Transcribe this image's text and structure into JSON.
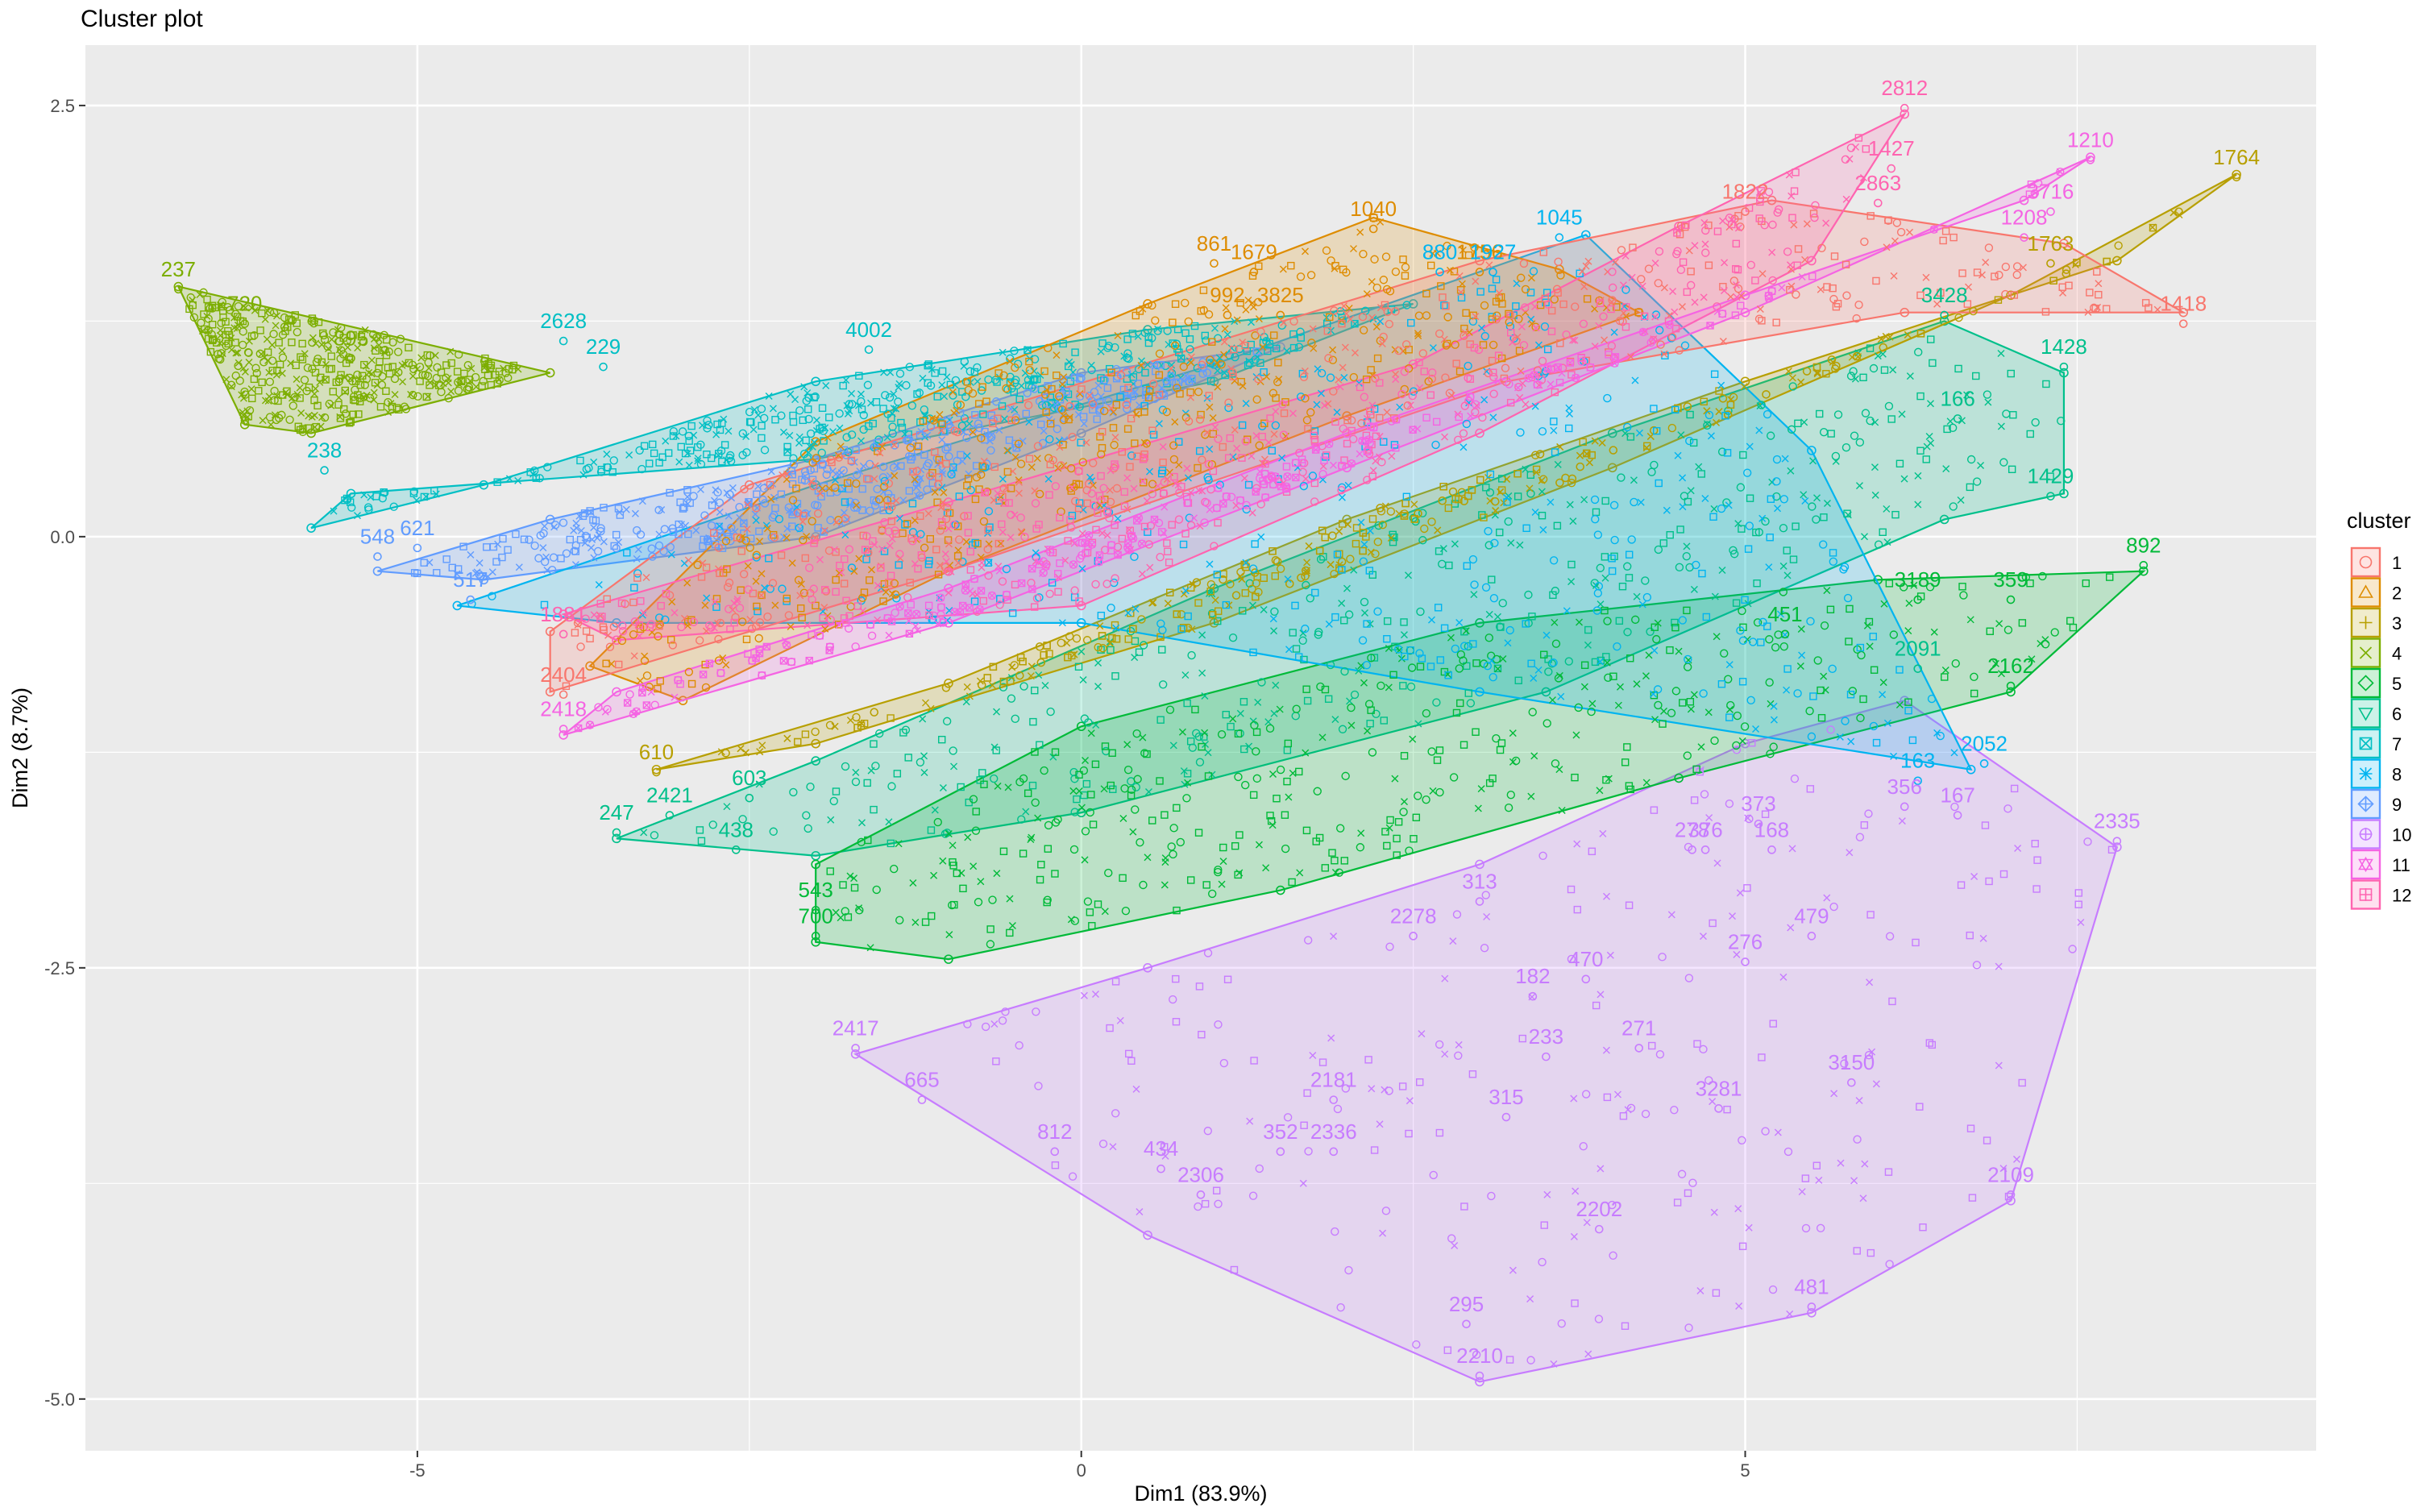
{
  "chart_data": {
    "type": "scatter",
    "title": "Cluster plot",
    "xlabel": "Dim1 (83.9%)",
    "ylabel": "Dim2 (8.7%)",
    "xlim": [
      -7.5,
      9.3
    ],
    "ylim": [
      -5.3,
      2.85
    ],
    "x_ticks": [
      {
        "value": -5,
        "label": "-5"
      },
      {
        "value": 0,
        "label": "0"
      },
      {
        "value": 5,
        "label": "5"
      }
    ],
    "y_ticks": [
      {
        "value": 2.5,
        "label": "2.5"
      },
      {
        "value": 0,
        "label": "0.0"
      },
      {
        "value": -2.5,
        "label": "-2.5"
      },
      {
        "value": -5,
        "label": "-5.0"
      }
    ],
    "grid": true,
    "legend_title": "cluster",
    "legend_placement": "right",
    "series": [
      {
        "name": "1",
        "color": "#F8766D",
        "hull": [
          [
            -4.0,
            -0.9
          ],
          [
            -1.0,
            -0.2
          ],
          [
            3.2,
            0.9
          ],
          [
            6.2,
            1.3
          ],
          [
            8.3,
            1.3
          ],
          [
            7.4,
            1.7
          ],
          [
            5.2,
            1.95
          ],
          [
            3.0,
            1.6
          ],
          [
            -2.5,
            0.3
          ],
          [
            -4.0,
            -0.55
          ]
        ],
        "labels": [
          {
            "x": 8.3,
            "y": 1.3,
            "t": "1418"
          },
          {
            "x": 5.0,
            "y": 1.95,
            "t": "1822"
          },
          {
            "x": -3.9,
            "y": -0.85,
            "t": "2404"
          }
        ]
      },
      {
        "name": "2",
        "color": "#DE8C00",
        "hull": [
          [
            -3.7,
            -0.75
          ],
          [
            -2.0,
            0.55
          ],
          [
            0.5,
            1.35
          ],
          [
            2.2,
            1.85
          ],
          [
            3.6,
            1.55
          ],
          [
            4.2,
            1.3
          ],
          [
            2.0,
            0.7
          ],
          [
            -1.0,
            -0.2
          ],
          [
            -3.0,
            -0.95
          ]
        ],
        "labels": [
          {
            "x": 2.2,
            "y": 1.85,
            "t": "1040"
          },
          {
            "x": 1.0,
            "y": 1.65,
            "t": "861"
          },
          {
            "x": 1.3,
            "y": 1.6,
            "t": "1679"
          },
          {
            "x": 3.0,
            "y": 1.6,
            "t": "1756"
          },
          {
            "x": 1.1,
            "y": 1.35,
            "t": "992"
          },
          {
            "x": 1.5,
            "y": 1.35,
            "t": "3825"
          }
        ]
      },
      {
        "name": "3",
        "color": "#B79F00",
        "hull": [
          [
            -3.2,
            -1.35
          ],
          [
            -1.0,
            -0.85
          ],
          [
            2.0,
            0.1
          ],
          [
            5.0,
            0.9
          ],
          [
            7.8,
            1.6
          ],
          [
            8.7,
            2.1
          ],
          [
            7.0,
            1.4
          ],
          [
            4.0,
            0.4
          ],
          [
            1.0,
            -0.5
          ],
          [
            -2.0,
            -1.2
          ]
        ],
        "labels": [
          {
            "x": 8.7,
            "y": 2.15,
            "t": "1764"
          },
          {
            "x": 7.3,
            "y": 1.65,
            "t": "1763"
          },
          {
            "x": -3.2,
            "y": -1.3,
            "t": "610"
          }
        ]
      },
      {
        "name": "4",
        "color": "#7CAE00",
        "hull": [
          [
            -6.8,
            1.45
          ],
          [
            -4.0,
            0.95
          ],
          [
            -5.8,
            0.6
          ],
          [
            -6.3,
            0.65
          ]
        ],
        "labels": [
          {
            "x": -6.8,
            "y": 1.5,
            "t": "237"
          },
          {
            "x": -6.3,
            "y": 1.3,
            "t": "720"
          },
          {
            "x": -5.5,
            "y": 1.1,
            "t": "895"
          }
        ]
      },
      {
        "name": "5",
        "color": "#00BA38",
        "hull": [
          [
            -2.0,
            -2.35
          ],
          [
            -1.0,
            -2.45
          ],
          [
            1.5,
            -2.05
          ],
          [
            4.5,
            -1.4
          ],
          [
            7.0,
            -0.9
          ],
          [
            8.0,
            -0.2
          ],
          [
            6.0,
            -0.25
          ],
          [
            3.0,
            -0.5
          ],
          [
            0.0,
            -1.1
          ],
          [
            -2.0,
            -1.9
          ]
        ],
        "labels": [
          {
            "x": 8.0,
            "y": -0.1,
            "t": "892"
          },
          {
            "x": 7.0,
            "y": -0.8,
            "t": "2162"
          },
          {
            "x": 7.0,
            "y": -0.3,
            "t": "359"
          },
          {
            "x": -2.0,
            "y": -2.1,
            "t": "543"
          },
          {
            "x": -2.0,
            "y": -2.25,
            "t": "700"
          },
          {
            "x": 6.3,
            "y": -0.3,
            "t": "3189"
          },
          {
            "x": 5.3,
            "y": -0.5,
            "t": "451"
          }
        ]
      },
      {
        "name": "6",
        "color": "#00C08B",
        "hull": [
          [
            -3.5,
            -1.75
          ],
          [
            -2.0,
            -1.85
          ],
          [
            0.0,
            -1.6
          ],
          [
            3.5,
            -0.9
          ],
          [
            6.5,
            0.1
          ],
          [
            7.4,
            0.25
          ],
          [
            7.4,
            0.95
          ],
          [
            6.5,
            1.25
          ],
          [
            4.0,
            0.6
          ],
          [
            1.0,
            -0.3
          ],
          [
            -2.0,
            -1.3
          ]
        ],
        "labels": [
          {
            "x": 7.4,
            "y": 1.05,
            "t": "1428"
          },
          {
            "x": 7.3,
            "y": 0.3,
            "t": "1429"
          },
          {
            "x": -3.5,
            "y": -1.65,
            "t": "247"
          },
          {
            "x": -3.1,
            "y": -1.55,
            "t": "2421"
          },
          {
            "x": -2.6,
            "y": -1.75,
            "t": "438"
          },
          {
            "x": -2.5,
            "y": -1.45,
            "t": "603"
          },
          {
            "x": 6.5,
            "y": 1.35,
            "t": "3428"
          },
          {
            "x": 6.6,
            "y": 0.75,
            "t": "166"
          },
          {
            "x": 6.3,
            "y": -0.7,
            "t": "2091"
          }
        ]
      },
      {
        "name": "7",
        "color": "#00BFC4",
        "hull": [
          [
            -5.8,
            0.05
          ],
          [
            -4.5,
            0.3
          ],
          [
            -2.0,
            0.9
          ],
          [
            0.5,
            1.2
          ],
          [
            2.5,
            1.35
          ],
          [
            1.0,
            0.9
          ],
          [
            -2.0,
            0.45
          ],
          [
            -5.5,
            0.25
          ]
        ],
        "labels": [
          {
            "x": -3.9,
            "y": 1.2,
            "t": "2628"
          },
          {
            "x": -3.6,
            "y": 1.05,
            "t": "229"
          },
          {
            "x": -5.7,
            "y": 0.45,
            "t": "238"
          },
          {
            "x": -1.6,
            "y": 1.15,
            "t": "4002"
          }
        ]
      },
      {
        "name": "8",
        "color": "#00B4F0",
        "hull": [
          [
            -4.7,
            -0.4
          ],
          [
            -2.0,
            0.3
          ],
          [
            1.0,
            1.0
          ],
          [
            3.8,
            1.75
          ],
          [
            5.5,
            0.5
          ],
          [
            6.7,
            -1.35
          ],
          [
            3.0,
            -0.9
          ],
          [
            0.0,
            -0.5
          ],
          [
            -3.5,
            -0.5
          ]
        ],
        "labels": [
          {
            "x": 3.6,
            "y": 1.8,
            "t": "1045"
          },
          {
            "x": 2.7,
            "y": 1.6,
            "t": "880"
          },
          {
            "x": 3.1,
            "y": 1.6,
            "t": "1927"
          },
          {
            "x": 6.8,
            "y": -1.25,
            "t": "2052"
          },
          {
            "x": 6.3,
            "y": -1.35,
            "t": "163"
          }
        ]
      },
      {
        "name": "9",
        "color": "#619CFF",
        "hull": [
          [
            -5.3,
            -0.2
          ],
          [
            -4.0,
            0.1
          ],
          [
            -2.0,
            0.45
          ],
          [
            0.0,
            0.95
          ],
          [
            1.5,
            1.1
          ],
          [
            0.0,
            0.6
          ],
          [
            -2.0,
            0.0
          ],
          [
            -4.5,
            -0.25
          ]
        ],
        "labels": [
          {
            "x": -5.3,
            "y": -0.05,
            "t": "548"
          },
          {
            "x": -5.0,
            "y": 0.0,
            "t": "621"
          },
          {
            "x": -4.6,
            "y": -0.3,
            "t": "517"
          }
        ]
      },
      {
        "name": "10",
        "color": "#C77CFF",
        "hull": [
          [
            -1.7,
            -3.0
          ],
          [
            0.5,
            -2.5
          ],
          [
            3.0,
            -1.9
          ],
          [
            5.0,
            -1.2
          ],
          [
            6.2,
            -0.95
          ],
          [
            7.8,
            -1.8
          ],
          [
            7.0,
            -3.85
          ],
          [
            5.5,
            -4.5
          ],
          [
            3.0,
            -4.9
          ],
          [
            0.5,
            -4.05
          ]
        ],
        "labels": [
          {
            "x": -1.7,
            "y": -2.9,
            "t": "2417"
          },
          {
            "x": -1.2,
            "y": -3.2,
            "t": "665"
          },
          {
            "x": 3.0,
            "y": -4.8,
            "t": "2210"
          },
          {
            "x": 7.8,
            "y": -1.7,
            "t": "2335"
          },
          {
            "x": 7.0,
            "y": -3.75,
            "t": "2109"
          },
          {
            "x": 5.5,
            "y": -4.4,
            "t": "481"
          },
          {
            "x": 2.9,
            "y": -4.5,
            "t": "295"
          },
          {
            "x": 3.9,
            "y": -3.95,
            "t": "2202"
          },
          {
            "x": 5.8,
            "y": -3.1,
            "t": "3150"
          },
          {
            "x": 4.8,
            "y": -3.25,
            "t": "3281"
          },
          {
            "x": 6.2,
            "y": -1.5,
            "t": "356"
          },
          {
            "x": 6.6,
            "y": -1.55,
            "t": "167"
          },
          {
            "x": 5.1,
            "y": -1.6,
            "t": "373"
          },
          {
            "x": 4.7,
            "y": -1.75,
            "t": "376"
          },
          {
            "x": 5.2,
            "y": -1.75,
            "t": "168"
          },
          {
            "x": 4.6,
            "y": -1.75,
            "t": "278"
          },
          {
            "x": 5.5,
            "y": -2.25,
            "t": "479"
          },
          {
            "x": 5.0,
            "y": -2.4,
            "t": "276"
          },
          {
            "x": 3.0,
            "y": -2.05,
            "t": "313"
          },
          {
            "x": 2.5,
            "y": -2.25,
            "t": "2278"
          },
          {
            "x": 3.8,
            "y": -2.5,
            "t": "470"
          },
          {
            "x": 3.4,
            "y": -2.6,
            "t": "182"
          },
          {
            "x": 3.5,
            "y": -2.95,
            "t": "233"
          },
          {
            "x": 4.2,
            "y": -2.9,
            "t": "271"
          },
          {
            "x": 3.2,
            "y": -3.3,
            "t": "315"
          },
          {
            "x": 1.9,
            "y": -3.5,
            "t": "2336"
          },
          {
            "x": 1.5,
            "y": -3.5,
            "t": "352"
          },
          {
            "x": 1.9,
            "y": -3.2,
            "t": "2181"
          },
          {
            "x": 0.6,
            "y": -3.6,
            "t": "434"
          },
          {
            "x": 0.9,
            "y": -3.75,
            "t": "2306"
          },
          {
            "x": -0.2,
            "y": -3.5,
            "t": "812"
          }
        ]
      },
      {
        "name": "11",
        "color": "#F564E3",
        "hull": [
          [
            -3.9,
            -1.15
          ],
          [
            -1.0,
            -0.5
          ],
          [
            2.0,
            0.4
          ],
          [
            5.0,
            1.3
          ],
          [
            7.6,
            2.2
          ],
          [
            7.1,
            1.95
          ],
          [
            5.0,
            1.4
          ],
          [
            2.0,
            0.6
          ],
          [
            -1.0,
            -0.3
          ],
          [
            -3.5,
            -0.9
          ]
        ],
        "labels": [
          {
            "x": 7.6,
            "y": 2.25,
            "t": "1210"
          },
          {
            "x": 7.3,
            "y": 1.95,
            "t": "3716"
          },
          {
            "x": 7.1,
            "y": 1.8,
            "t": "1208"
          },
          {
            "x": -3.9,
            "y": -1.05,
            "t": "2418"
          }
        ]
      },
      {
        "name": "12",
        "color": "#FF64B0",
        "hull": [
          [
            -3.9,
            -0.45
          ],
          [
            -1.0,
            0.2
          ],
          [
            2.5,
            1.0
          ],
          [
            4.5,
            1.8
          ],
          [
            6.2,
            2.45
          ],
          [
            5.5,
            1.6
          ],
          [
            3.0,
            0.6
          ],
          [
            0.0,
            -0.4
          ],
          [
            -3.5,
            -0.6
          ]
        ],
        "labels": [
          {
            "x": 6.2,
            "y": 2.55,
            "t": "2812"
          },
          {
            "x": 6.1,
            "y": 2.2,
            "t": "1427"
          },
          {
            "x": 6.0,
            "y": 2.0,
            "t": "2863"
          },
          {
            "x": -3.9,
            "y": -0.5,
            "t": "1881"
          }
        ]
      }
    ]
  }
}
